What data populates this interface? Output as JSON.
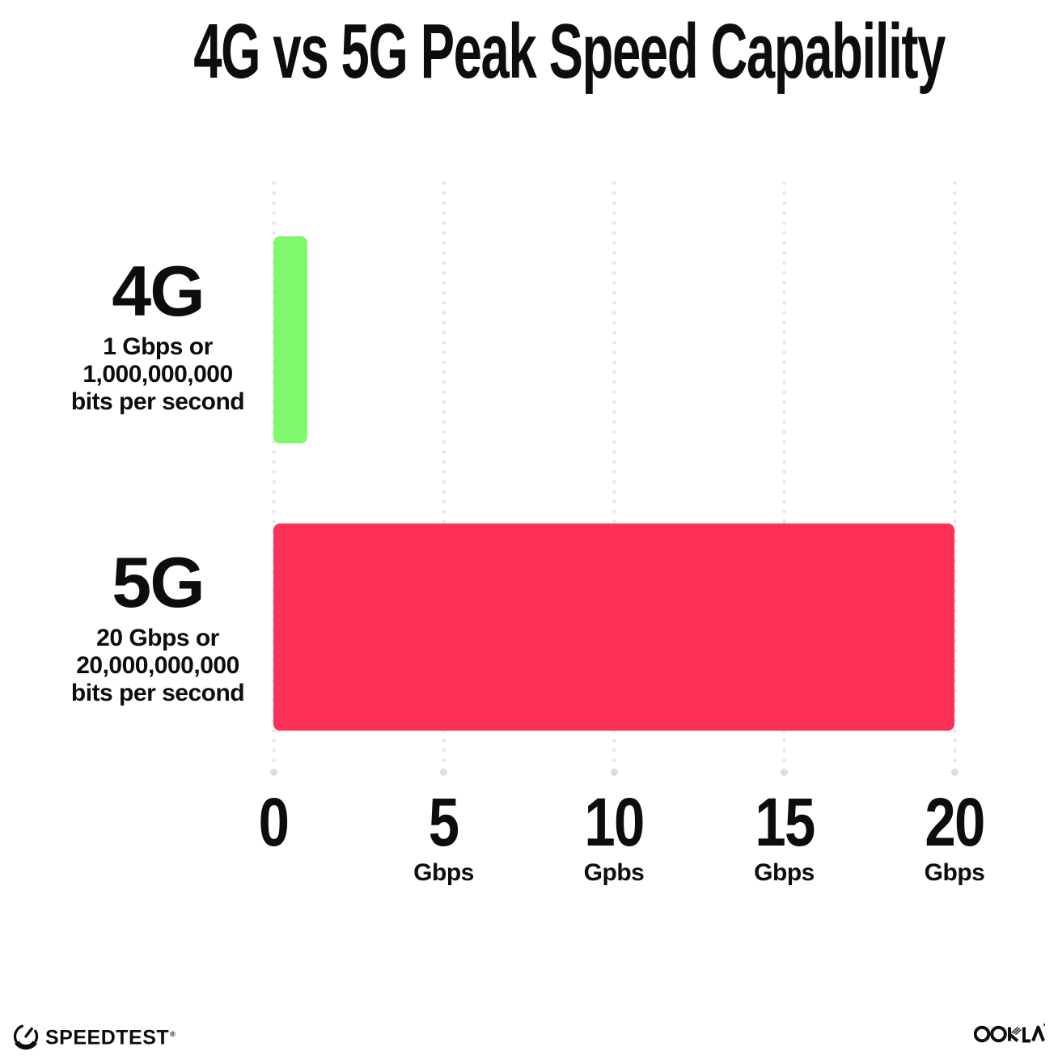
{
  "title": "4G vs 5G Peak Speed Capability",
  "chart_data": {
    "type": "bar",
    "orientation": "horizontal",
    "title": "4G vs 5G Peak Speed Capability",
    "categories": [
      "4G",
      "5G"
    ],
    "values": [
      1,
      20
    ],
    "value_unit": "Gbps",
    "xlim": [
      0,
      20
    ],
    "grid": "vertical-dotted",
    "legend": "none",
    "rows": [
      {
        "label": "4G",
        "value": 1,
        "color": "#7ef96b",
        "sublabel_line1": "1 Gbps or",
        "sublabel_line2": "1,000,000,000",
        "sublabel_line3": "bits per second"
      },
      {
        "label": "5G",
        "value": 20,
        "color": "#fd3158",
        "sublabel_line1": "20 Gbps or",
        "sublabel_line2": "20,000,000,000",
        "sublabel_line3": "bits per second"
      }
    ],
    "x_ticks": [
      {
        "value": 0,
        "unit": ""
      },
      {
        "value": 5,
        "unit": "Gbps"
      },
      {
        "value": 10,
        "unit": "Gpbs"
      },
      {
        "value": 15,
        "unit": "Gbps"
      },
      {
        "value": 20,
        "unit": "Gbps"
      }
    ]
  },
  "footer": {
    "speedtest_label": "SPEEDTEST",
    "speedtest_trademark": "®",
    "ookla_label": "OOKLA"
  },
  "colors": {
    "bar_4g": "#7ef96b",
    "bar_5g": "#fd3158",
    "gridline_dot": "#e2e4ef",
    "gridline_end_dot": "#d9dcea",
    "text": "#0d0d0d",
    "background": "#ffffff"
  }
}
